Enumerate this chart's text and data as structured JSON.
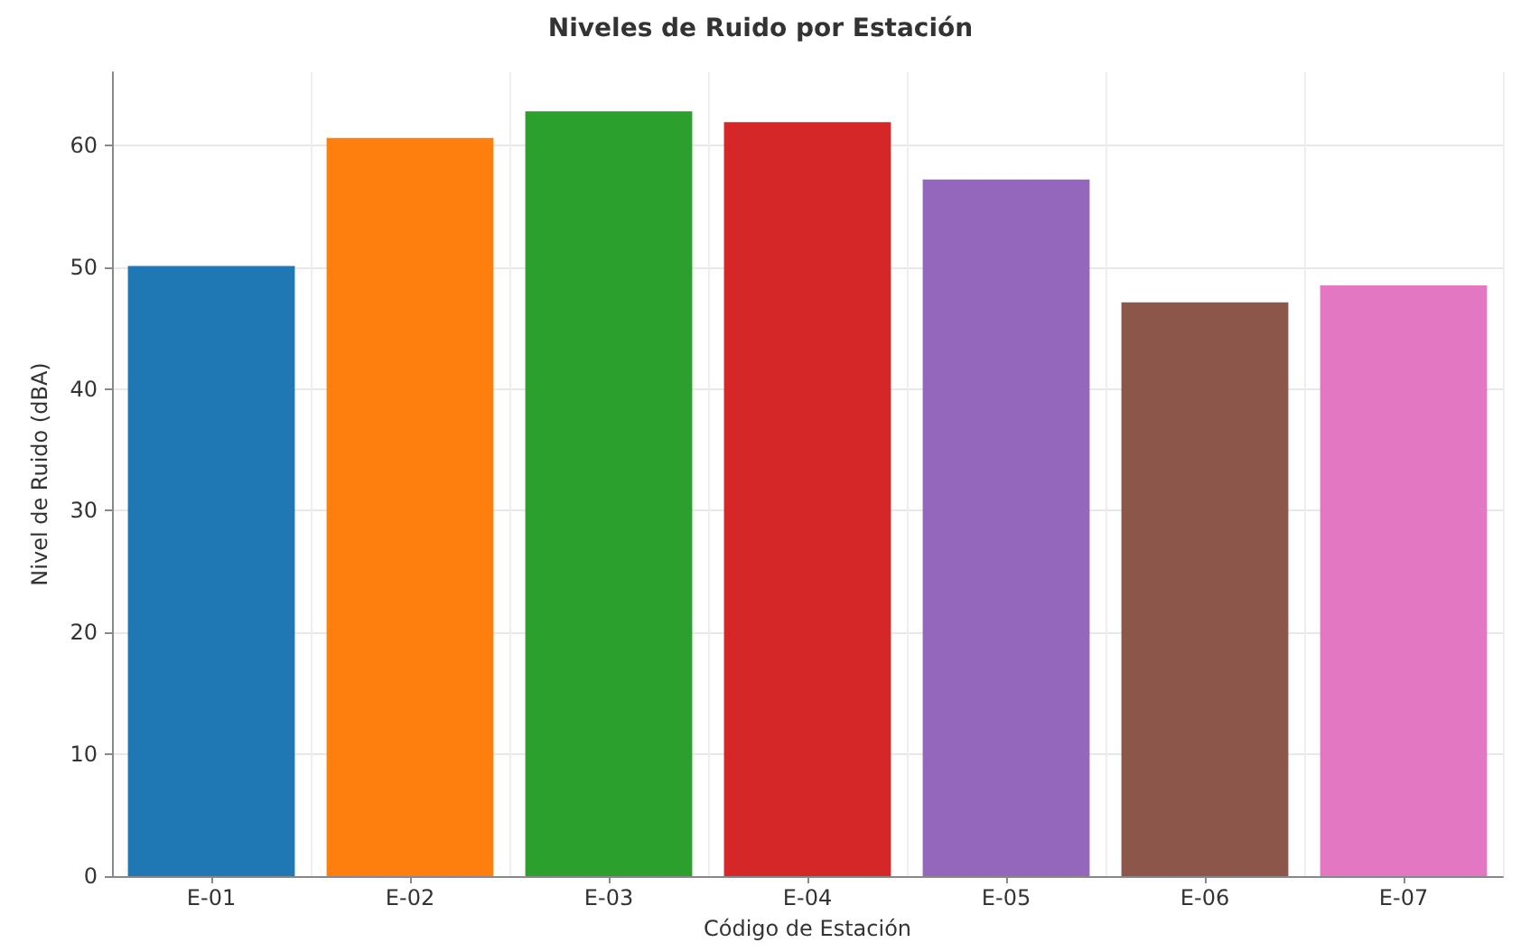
{
  "chart_data": {
    "type": "bar",
    "title": "Niveles de Ruido por Estación",
    "xlabel": "Código de Estación",
    "ylabel": "Nivel de Ruido (dBA)",
    "categories": [
      "E-01",
      "E-02",
      "E-03",
      "E-04",
      "E-05",
      "E-06",
      "E-07"
    ],
    "values": [
      50.1,
      60.6,
      62.8,
      61.9,
      57.2,
      47.1,
      48.5
    ],
    "colors": [
      "#1f77b4",
      "#ff7f0e",
      "#2ca02c",
      "#d62728",
      "#9467bd",
      "#8c564b",
      "#e377c2"
    ],
    "ylim": [
      0,
      66
    ],
    "yticks": [
      0,
      10,
      20,
      30,
      40,
      50,
      60
    ],
    "grid": true
  }
}
